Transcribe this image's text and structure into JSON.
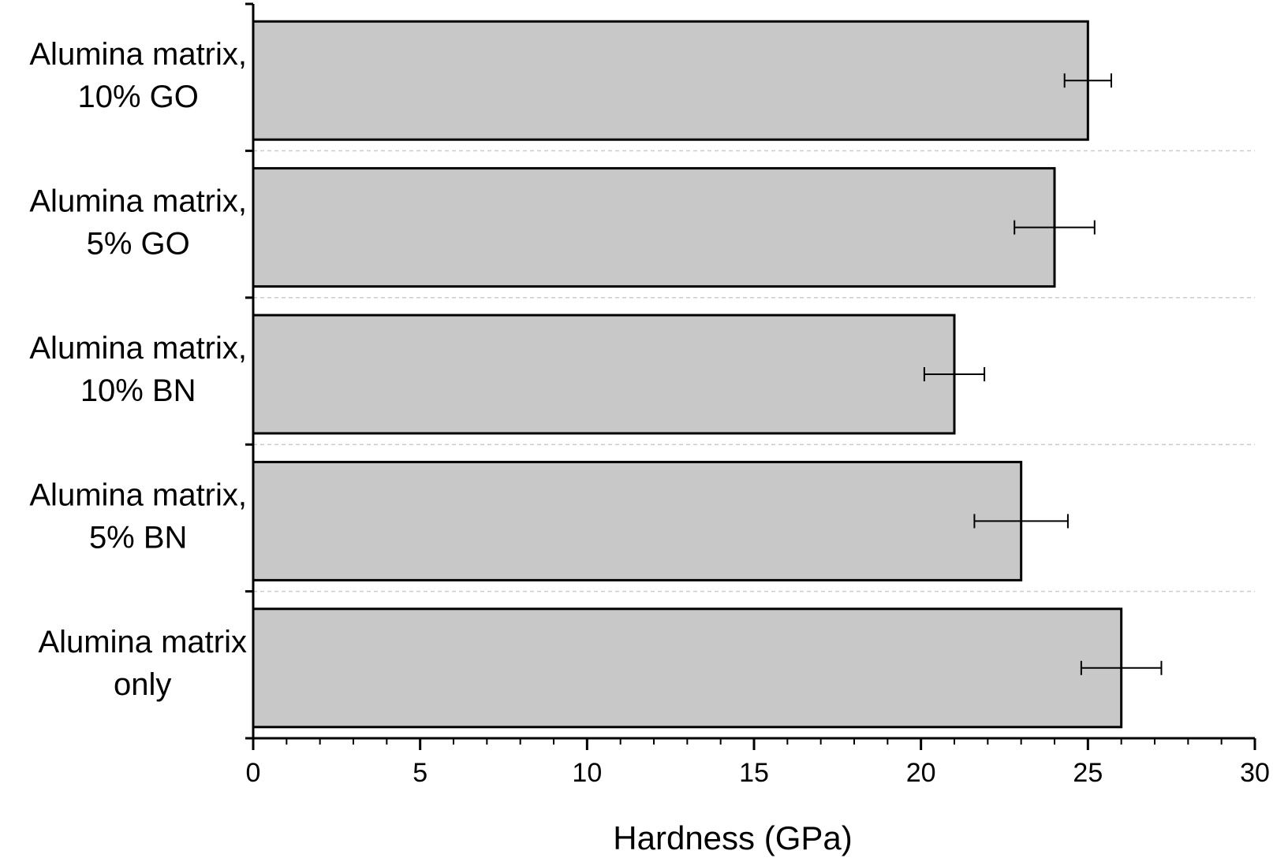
{
  "chart_data": {
    "type": "bar",
    "orientation": "horizontal",
    "categories": [
      [
        "Alumina matrix,",
        "10% GO"
      ],
      [
        "Alumina matrix,",
        "5% GO"
      ],
      [
        "Alumina matrix,",
        "10% BN"
      ],
      [
        "Alumina matrix,",
        "5% BN"
      ],
      [
        "Alumina matrix",
        "only"
      ]
    ],
    "values": [
      25.0,
      24.0,
      21.0,
      23.0,
      26.0
    ],
    "errors": [
      0.7,
      1.2,
      0.9,
      1.4,
      1.2
    ],
    "xlabel": "Hardness (GPa)",
    "xlim": [
      0,
      30
    ],
    "xticks": [
      0,
      5,
      10,
      15,
      20,
      25,
      30
    ],
    "xtick_labels": [
      "0",
      "5",
      "10",
      "15",
      "20",
      "25",
      "30"
    ],
    "grid": "horizontal dashed separators",
    "colors": {
      "bar_fill": "#c8c8c8",
      "bar_stroke": "#000000",
      "grid": "#cccccc"
    }
  }
}
